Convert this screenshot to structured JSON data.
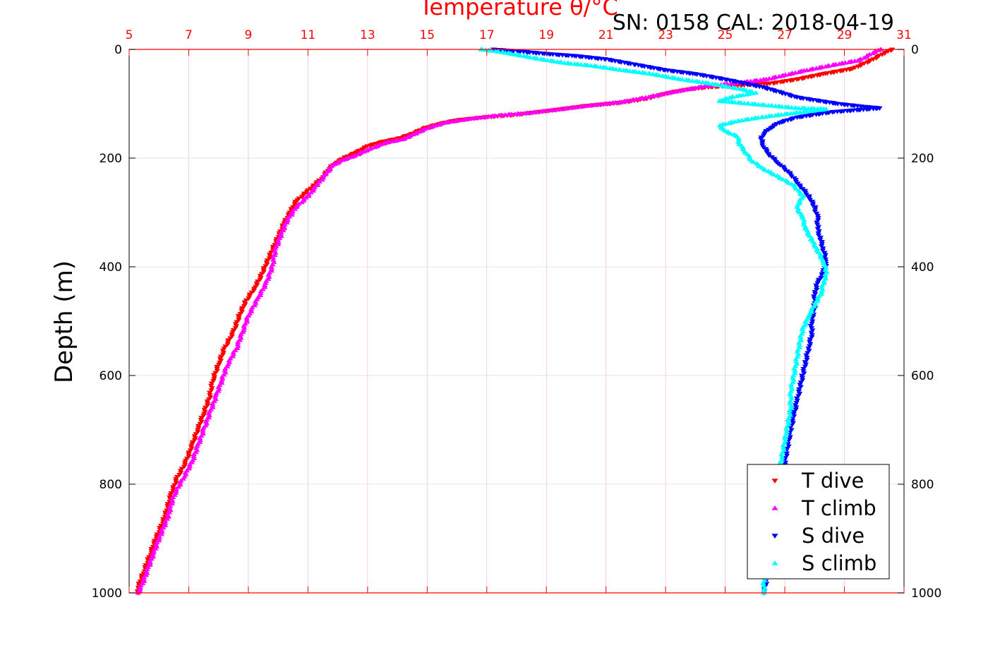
{
  "chart_data": {
    "type": "scatter",
    "title": "Temperature θ/°C",
    "stamp": "SN: 0158  CAL: 2018-04-19",
    "ylabel": "Depth (m)",
    "xlim": [
      5,
      31
    ],
    "ylim": [
      0,
      1000
    ],
    "y_reversed": true,
    "x_ticks": [
      "5",
      "7",
      "9",
      "11",
      "13",
      "15",
      "17",
      "19",
      "21",
      "23",
      "25",
      "27",
      "29",
      "31"
    ],
    "y_ticks": [
      "0",
      "200",
      "400",
      "600",
      "800",
      "1000"
    ],
    "grid": true,
    "legend": {
      "position": "bottom-right",
      "entries": [
        "T dive",
        "T climb",
        "S dive",
        "S climb"
      ]
    },
    "series": [
      {
        "name": "T dive",
        "color": "#ff0000",
        "marker": "triangle-down",
        "points": [
          [
            30.6,
            0
          ],
          [
            30.4,
            5
          ],
          [
            29.9,
            20
          ],
          [
            29.3,
            35
          ],
          [
            28.3,
            45
          ],
          [
            27.4,
            55
          ],
          [
            26.6,
            62
          ],
          [
            25.5,
            66
          ],
          [
            24.5,
            69
          ],
          [
            23.8,
            73
          ],
          [
            23.1,
            80
          ],
          [
            22.4,
            90
          ],
          [
            21.5,
            98
          ],
          [
            20.3,
            104
          ],
          [
            19.2,
            112
          ],
          [
            18.0,
            120
          ],
          [
            16.9,
            125
          ],
          [
            16.0,
            130
          ],
          [
            15.4,
            137
          ],
          [
            14.9,
            145
          ],
          [
            14.5,
            155
          ],
          [
            14.1,
            163
          ],
          [
            13.5,
            170
          ],
          [
            13.0,
            178
          ],
          [
            12.6,
            190
          ],
          [
            12.2,
            200
          ],
          [
            11.9,
            210
          ],
          [
            11.7,
            220
          ],
          [
            11.5,
            235
          ],
          [
            11.2,
            250
          ],
          [
            10.9,
            265
          ],
          [
            10.6,
            280
          ],
          [
            10.4,
            300
          ],
          [
            10.2,
            320
          ],
          [
            10.0,
            345
          ],
          [
            9.8,
            370
          ],
          [
            9.6,
            395
          ],
          [
            9.4,
            420
          ],
          [
            9.2,
            440
          ],
          [
            8.9,
            465
          ],
          [
            8.7,
            490
          ],
          [
            8.5,
            520
          ],
          [
            8.2,
            550
          ],
          [
            8.0,
            580
          ],
          [
            7.8,
            610
          ],
          [
            7.7,
            640
          ],
          [
            7.5,
            670
          ],
          [
            7.3,
            700
          ],
          [
            7.1,
            730
          ],
          [
            6.9,
            760
          ],
          [
            6.6,
            790
          ],
          [
            6.4,
            820
          ],
          [
            6.2,
            860
          ],
          [
            5.9,
            900
          ],
          [
            5.7,
            930
          ],
          [
            5.5,
            960
          ],
          [
            5.3,
            990
          ],
          [
            5.3,
            1000
          ]
        ]
      },
      {
        "name": "T climb",
        "color": "#ff00ff",
        "marker": "triangle-up",
        "points": [
          [
            30.2,
            0
          ],
          [
            30.0,
            5
          ],
          [
            29.5,
            20
          ],
          [
            28.5,
            30
          ],
          [
            27.6,
            40
          ],
          [
            26.4,
            55
          ],
          [
            25.4,
            62
          ],
          [
            24.3,
            68
          ],
          [
            23.3,
            78
          ],
          [
            22.4,
            88
          ],
          [
            21.5,
            97
          ],
          [
            20.5,
            103
          ],
          [
            19.5,
            110
          ],
          [
            18.4,
            117
          ],
          [
            17.3,
            122
          ],
          [
            16.4,
            128
          ],
          [
            15.6,
            135
          ],
          [
            15.0,
            145
          ],
          [
            14.6,
            155
          ],
          [
            14.2,
            165
          ],
          [
            13.6,
            172
          ],
          [
            13.0,
            185
          ],
          [
            12.6,
            195
          ],
          [
            12.1,
            205
          ],
          [
            11.8,
            215
          ],
          [
            11.6,
            230
          ],
          [
            11.3,
            250
          ],
          [
            11.0,
            270
          ],
          [
            10.6,
            290
          ],
          [
            10.3,
            315
          ],
          [
            10.1,
            340
          ],
          [
            9.9,
            370
          ],
          [
            9.8,
            400
          ],
          [
            9.6,
            430
          ],
          [
            9.3,
            460
          ],
          [
            9.0,
            490
          ],
          [
            8.8,
            520
          ],
          [
            8.6,
            550
          ],
          [
            8.3,
            580
          ],
          [
            8.1,
            610
          ],
          [
            7.9,
            640
          ],
          [
            7.7,
            670
          ],
          [
            7.5,
            700
          ],
          [
            7.3,
            730
          ],
          [
            7.1,
            760
          ],
          [
            6.8,
            790
          ],
          [
            6.5,
            820
          ],
          [
            6.3,
            860
          ],
          [
            6.0,
            900
          ],
          [
            5.8,
            930
          ],
          [
            5.6,
            960
          ],
          [
            5.4,
            990
          ],
          [
            5.3,
            1000
          ]
        ]
      },
      {
        "name": "S dive",
        "color": "#0000ff",
        "marker": "triangle-down",
        "points": [
          [
            17.2,
            0
          ],
          [
            18.0,
            3
          ],
          [
            19.0,
            8
          ],
          [
            20.0,
            12
          ],
          [
            21.0,
            18
          ],
          [
            22.0,
            28
          ],
          [
            23.0,
            38
          ],
          [
            24.0,
            45
          ],
          [
            25.0,
            55
          ],
          [
            25.7,
            63
          ],
          [
            26.3,
            70
          ],
          [
            26.8,
            78
          ],
          [
            27.4,
            88
          ],
          [
            28.2,
            95
          ],
          [
            28.8,
            100
          ],
          [
            29.6,
            105
          ],
          [
            30.2,
            108
          ],
          [
            28.6,
            115
          ],
          [
            27.4,
            125
          ],
          [
            26.8,
            135
          ],
          [
            26.5,
            145
          ],
          [
            26.3,
            155
          ],
          [
            26.2,
            165
          ],
          [
            26.3,
            180
          ],
          [
            26.5,
            195
          ],
          [
            26.8,
            210
          ],
          [
            27.2,
            230
          ],
          [
            27.5,
            250
          ],
          [
            27.8,
            270
          ],
          [
            28.0,
            290
          ],
          [
            28.1,
            310
          ],
          [
            28.1,
            330
          ],
          [
            28.2,
            350
          ],
          [
            28.3,
            370
          ],
          [
            28.4,
            390
          ],
          [
            28.3,
            410
          ],
          [
            28.1,
            430
          ],
          [
            28.0,
            450
          ],
          [
            28.0,
            475
          ],
          [
            27.9,
            500
          ],
          [
            27.9,
            525
          ],
          [
            27.8,
            550
          ],
          [
            27.7,
            575
          ],
          [
            27.6,
            600
          ],
          [
            27.5,
            625
          ],
          [
            27.4,
            650
          ],
          [
            27.3,
            675
          ],
          [
            27.2,
            700
          ],
          [
            27.1,
            730
          ],
          [
            27.0,
            760
          ],
          [
            26.9,
            790
          ],
          [
            26.8,
            820
          ],
          [
            26.7,
            850
          ],
          [
            26.6,
            880
          ],
          [
            26.5,
            910
          ],
          [
            26.5,
            940
          ],
          [
            26.4,
            970
          ],
          [
            26.3,
            1000
          ]
        ]
      },
      {
        "name": "S climb",
        "color": "#00ffff",
        "marker": "triangle-up",
        "points": [
          [
            16.8,
            0
          ],
          [
            17.5,
            5
          ],
          [
            18.0,
            10
          ],
          [
            18.8,
            18
          ],
          [
            19.6,
            25
          ],
          [
            20.5,
            30
          ],
          [
            21.5,
            38
          ],
          [
            22.5,
            45
          ],
          [
            23.5,
            55
          ],
          [
            24.4,
            62
          ],
          [
            25.0,
            68
          ],
          [
            25.6,
            74
          ],
          [
            26.0,
            80
          ],
          [
            25.2,
            88
          ],
          [
            24.8,
            95
          ],
          [
            25.8,
            100
          ],
          [
            26.6,
            104
          ],
          [
            27.4,
            108
          ],
          [
            28.4,
            110
          ],
          [
            27.2,
            118
          ],
          [
            26.2,
            125
          ],
          [
            25.4,
            132
          ],
          [
            24.8,
            140
          ],
          [
            25.0,
            150
          ],
          [
            25.4,
            160
          ],
          [
            25.5,
            175
          ],
          [
            25.7,
            190
          ],
          [
            25.9,
            205
          ],
          [
            26.3,
            220
          ],
          [
            26.8,
            235
          ],
          [
            27.3,
            250
          ],
          [
            27.6,
            270
          ],
          [
            27.4,
            290
          ],
          [
            27.6,
            310
          ],
          [
            27.7,
            330
          ],
          [
            27.9,
            350
          ],
          [
            28.1,
            370
          ],
          [
            28.3,
            390
          ],
          [
            28.4,
            410
          ],
          [
            28.3,
            430
          ],
          [
            28.2,
            450
          ],
          [
            28.0,
            470
          ],
          [
            27.8,
            490
          ],
          [
            27.6,
            515
          ],
          [
            27.5,
            540
          ],
          [
            27.4,
            570
          ],
          [
            27.3,
            600
          ],
          [
            27.2,
            630
          ],
          [
            27.2,
            660
          ],
          [
            27.1,
            690
          ],
          [
            27.0,
            720
          ],
          [
            26.9,
            750
          ],
          [
            26.8,
            780
          ],
          [
            26.7,
            810
          ],
          [
            26.6,
            840
          ],
          [
            26.5,
            870
          ],
          [
            26.4,
            900
          ],
          [
            26.4,
            930
          ],
          [
            26.3,
            960
          ],
          [
            26.3,
            1000
          ]
        ]
      }
    ]
  }
}
